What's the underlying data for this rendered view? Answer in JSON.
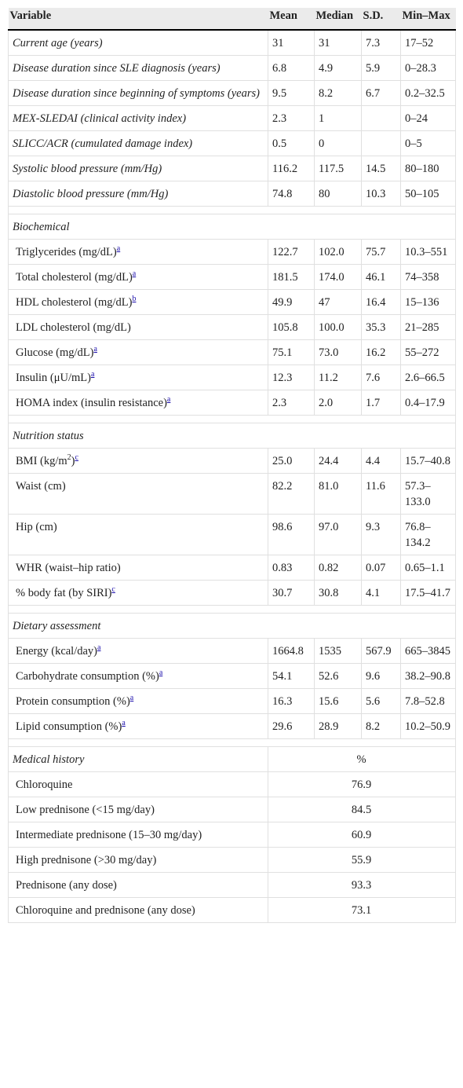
{
  "table": {
    "header": [
      "Variable",
      "Mean",
      "Median",
      "S.D.",
      "Min–Max"
    ],
    "sections": [
      {
        "rows": [
          {
            "label": "Current age (years)",
            "values": [
              "31",
              "31",
              "7.3",
              "17–52"
            ]
          },
          {
            "label": "Disease duration since SLE diagnosis (years)",
            "values": [
              "6.8",
              "4.9",
              "5.9",
              "0–28.3"
            ]
          },
          {
            "label": "Disease duration since beginning of symptoms (years)",
            "values": [
              "9.5",
              "8.2",
              "6.7",
              "0.2–32.5"
            ]
          },
          {
            "label": "MEX-SLEDAI (clinical activity index)",
            "values": [
              "2.3",
              "1",
              null,
              "0–24"
            ]
          },
          {
            "label": "SLICC/ACR (cumulated damage index)",
            "values": [
              "0.5",
              "0",
              null,
              "0–5"
            ]
          },
          {
            "label": "Systolic blood pressure (mm/Hg)",
            "values": [
              "116.2",
              "117.5",
              "14.5",
              "80–180"
            ]
          },
          {
            "label": "Diastolic blood pressure (mm/Hg)",
            "values": [
              "74.8",
              "80",
              "10.3",
              "50–105"
            ]
          }
        ]
      },
      {
        "title": "Biochemical",
        "rows": [
          {
            "label": "Triglycerides (mg/dL)",
            "note": "a",
            "values": [
              "122.7",
              "102.0",
              "75.7",
              "10.3–551"
            ]
          },
          {
            "label": "Total cholesterol (mg/dL)",
            "note": "a",
            "values": [
              "181.5",
              "174.0",
              "46.1",
              "74–358"
            ]
          },
          {
            "label": "HDL cholesterol (mg/dL)",
            "note": "b",
            "values": [
              "49.9",
              "47",
              "16.4",
              "15–136"
            ]
          },
          {
            "label": "LDL cholesterol (mg/dL)",
            "values": [
              "105.8",
              "100.0",
              "35.3",
              "21–285"
            ]
          },
          {
            "label": "Glucose (mg/dL)",
            "note": "a",
            "values": [
              "75.1",
              "73.0",
              "16.2",
              "55–272"
            ]
          },
          {
            "label": "Insulin (μU/mL)",
            "note": "a",
            "values": [
              "12.3",
              "11.2",
              "7.6",
              "2.6–66.5"
            ]
          },
          {
            "label": "HOMA index (insulin resistance)",
            "note": "a",
            "values": [
              "2.3",
              "2.0",
              "1.7",
              "0.4–17.9"
            ]
          }
        ]
      },
      {
        "title": "Nutrition status",
        "rows": [
          {
            "label": "BMI (kg/m",
            "sup": "2",
            "label_end": ")",
            "note": "c",
            "values": [
              "25.0",
              "24.4",
              "4.4",
              "15.7–40.8"
            ]
          },
          {
            "label": "Waist (cm)",
            "values": [
              "82.2",
              "81.0",
              "11.6",
              "57.3–133.0"
            ]
          },
          {
            "label": "Hip (cm)",
            "values": [
              "98.6",
              "97.0",
              "9.3",
              "76.8–134.2"
            ]
          },
          {
            "label": "WHR (waist–hip ratio)",
            "values": [
              "0.83",
              "0.82",
              "0.07",
              "0.65–1.1"
            ]
          },
          {
            "label": "% body fat (by SIRI)",
            "note": "c",
            "values": [
              "30.7",
              "30.8",
              "4.1",
              "17.5–41.7"
            ]
          }
        ]
      },
      {
        "title": "Dietary assessment",
        "rows": [
          {
            "label": "Energy (kcal/day)",
            "note": "a",
            "values": [
              "1664.8",
              "1535",
              "567.9",
              "665–3845"
            ]
          },
          {
            "label": "Carbohydrate consumption (%)",
            "note": "a",
            "values": [
              "54.1",
              "52.6",
              "9.6",
              "38.2–90.8"
            ]
          },
          {
            "label": "Protein consumption (%)",
            "note": "a",
            "values": [
              "16.3",
              "15.6",
              "5.6",
              "7.8–52.8"
            ]
          },
          {
            "label": "Lipid consumption (%)",
            "note": "a",
            "values": [
              "29.6",
              "28.9",
              "8.2",
              "10.2–50.9"
            ]
          }
        ]
      },
      {
        "title": "Medical history",
        "value_header": "%",
        "rows": [
          {
            "label": "Chloroquine",
            "value": "76.9"
          },
          {
            "label": "Low prednisone (<15 mg/day)",
            "value": "84.5"
          },
          {
            "label": "Intermediate prednisone (15–30 mg/day)",
            "value": "60.9"
          },
          {
            "label": "High prednisone (>30 mg/day)",
            "value": "55.9"
          },
          {
            "label": "Prednisone (any dose)",
            "value": "93.3"
          },
          {
            "label": "Chloroquine and prednisone (any dose)",
            "value": "73.1"
          }
        ]
      }
    ]
  }
}
